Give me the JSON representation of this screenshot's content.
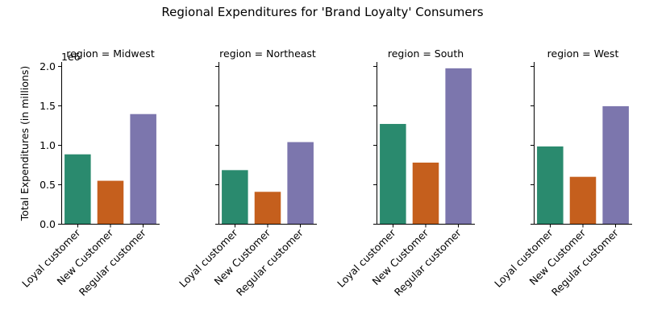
{
  "chart_data": {
    "type": "bar",
    "title": "Regional Expenditures for 'Brand Loyalty' Consumers",
    "ylabel": "Total Expenditures (in millions)",
    "y_offset_label": "1e6",
    "ylim": [
      0,
      2050000
    ],
    "y_ticks": [
      0.0,
      0.5,
      1.0,
      1.5,
      2.0
    ],
    "y_tick_labels": [
      "0.0",
      "0.5",
      "1.0",
      "1.5",
      "2.0"
    ],
    "y_tick_scale": 1000000,
    "categories": [
      "Loyal customer",
      "New Customer",
      "Regular customer"
    ],
    "colors": [
      "#2a8a6e",
      "#c55f1d",
      "#7c76ad"
    ],
    "grid": false,
    "facets": [
      {
        "title": "region = Midwest",
        "values": [
          880000,
          545000,
          1390000
        ]
      },
      {
        "title": "region = Northeast",
        "values": [
          680000,
          405000,
          1035000
        ]
      },
      {
        "title": "region = South",
        "values": [
          1265000,
          775000,
          1970000
        ]
      },
      {
        "title": "region = West",
        "values": [
          980000,
          595000,
          1490000
        ]
      }
    ]
  }
}
